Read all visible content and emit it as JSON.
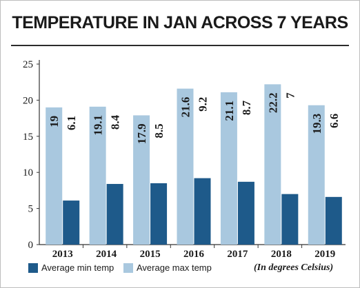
{
  "chart_data": {
    "type": "bar",
    "title": "TEMPERATURE IN JAN ACROSS 7 YEARS",
    "unit_note": "(In degrees Celsius)",
    "categories": [
      "2013",
      "2014",
      "2015",
      "2016",
      "2017",
      "2018",
      "2019"
    ],
    "series": [
      {
        "name": "Average max temp",
        "color": "#a9c8df",
        "values": [
          19,
          19.1,
          17.9,
          21.6,
          21.1,
          22.2,
          19.3
        ]
      },
      {
        "name": "Average min temp",
        "color": "#1e5a8a",
        "values": [
          6.1,
          8.4,
          8.5,
          9.2,
          8.7,
          7,
          6.6
        ]
      }
    ],
    "legend_order": [
      1,
      0
    ],
    "ylim": [
      0,
      25
    ],
    "yticks": [
      0,
      5,
      10,
      15,
      20,
      25
    ],
    "grid": false,
    "legend_position": "bottom-left"
  }
}
